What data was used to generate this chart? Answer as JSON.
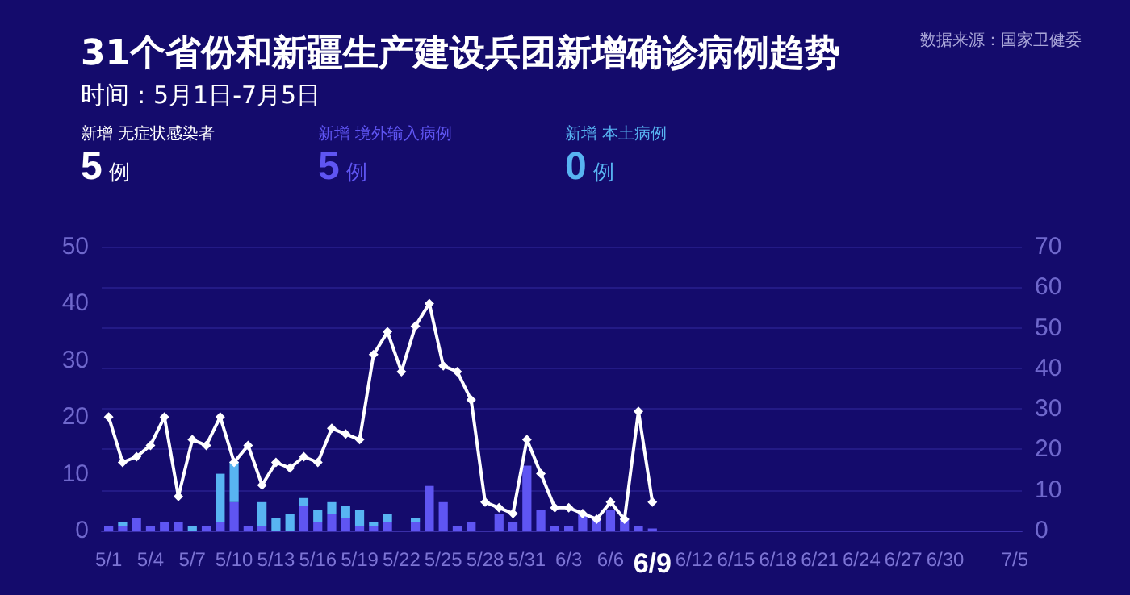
{
  "chart_data": {
    "type": "bar",
    "title": "31个省份和新疆生产建设兵团新增确诊病例趋势",
    "subtitle": "时间：5月1日-7月5日",
    "annotations": [
      "数据来源：国家卫健委",
      "新增 无症状感染者\n5 例",
      "新增 境外输入病例\n5 例",
      "新增 本土病例\n0 例"
    ],
    "categories": [
      "5/1",
      null,
      null,
      "5/4",
      null,
      null,
      "5/7",
      null,
      null,
      "5/10",
      null,
      null,
      "5/13",
      null,
      null,
      "5/16",
      null,
      null,
      "5/19",
      null,
      null,
      "5/22",
      null,
      null,
      "5/25",
      null,
      null,
      "5/28",
      null,
      null,
      "5/31",
      null,
      null,
      "6/3",
      null,
      null,
      "6/6",
      null,
      null,
      "6/9",
      null,
      null,
      "6/12",
      null,
      null,
      "6/15",
      null,
      null,
      "6/18",
      null,
      null,
      "6/21",
      null,
      null,
      "6/24",
      null,
      null,
      "6/27",
      null,
      null,
      "6/30",
      null,
      null,
      null,
      null,
      "7/5"
    ],
    "stacked": true,
    "series": [
      {
        "axis": "y2",
        "color": "#5f55f2",
        "values": [
          1,
          1,
          3,
          1,
          2,
          2,
          0,
          1,
          2,
          7,
          1,
          1,
          0,
          0,
          6,
          2,
          4,
          3,
          1,
          1,
          2,
          0,
          2,
          11,
          7,
          1,
          2,
          0,
          4,
          2,
          16,
          5,
          1,
          1,
          4,
          3,
          5,
          3,
          1,
          0.5,
          null,
          null,
          null,
          null,
          null,
          null,
          null,
          null,
          null,
          null,
          null,
          null,
          null,
          null,
          null,
          null,
          null,
          null,
          null,
          null,
          null,
          null,
          null,
          null,
          null,
          null
        ]
      },
      {
        "axis": "y2",
        "color": "#58b4f2",
        "values": [
          0,
          1,
          0,
          0,
          0,
          0,
          1,
          0,
          12,
          10,
          0,
          6,
          3,
          4,
          2,
          3,
          3,
          3,
          4,
          1,
          2,
          0,
          1,
          0,
          0,
          0,
          0,
          0,
          0,
          0,
          0,
          0,
          0,
          0,
          0,
          0,
          0,
          0,
          0,
          0,
          null,
          null,
          null,
          null,
          null,
          null,
          null,
          null,
          null,
          null,
          null,
          null,
          null,
          null,
          null,
          null,
          null,
          null,
          null,
          null,
          null,
          null,
          null,
          null,
          null,
          null
        ]
      },
      {
        "type": "line",
        "color": "#ffffff",
        "values": [
          20,
          12,
          13,
          15,
          20,
          6,
          16,
          15,
          20,
          12,
          15,
          8,
          12,
          11,
          13,
          12,
          18,
          17,
          16,
          31,
          35,
          28,
          36,
          40,
          29,
          28,
          23,
          5,
          4,
          3,
          16,
          10,
          4,
          4,
          3,
          2,
          5,
          2,
          21,
          5,
          null,
          null,
          null,
          null,
          null,
          null,
          null,
          null,
          null,
          null,
          null,
          null,
          null,
          null,
          null,
          null,
          null,
          null,
          null,
          null,
          null,
          null,
          null,
          null,
          null,
          null
        ]
      }
    ],
    "ylim": [
      0,
      50
    ],
    "yticks": [
      0,
      10,
      20,
      30,
      40,
      50
    ],
    "y2lim": [
      0,
      70
    ],
    "y2ticks": [
      0,
      10,
      20,
      30,
      40,
      50,
      60,
      70
    ],
    "grid": true,
    "marker": "diamond",
    "line_style": "solid"
  }
}
